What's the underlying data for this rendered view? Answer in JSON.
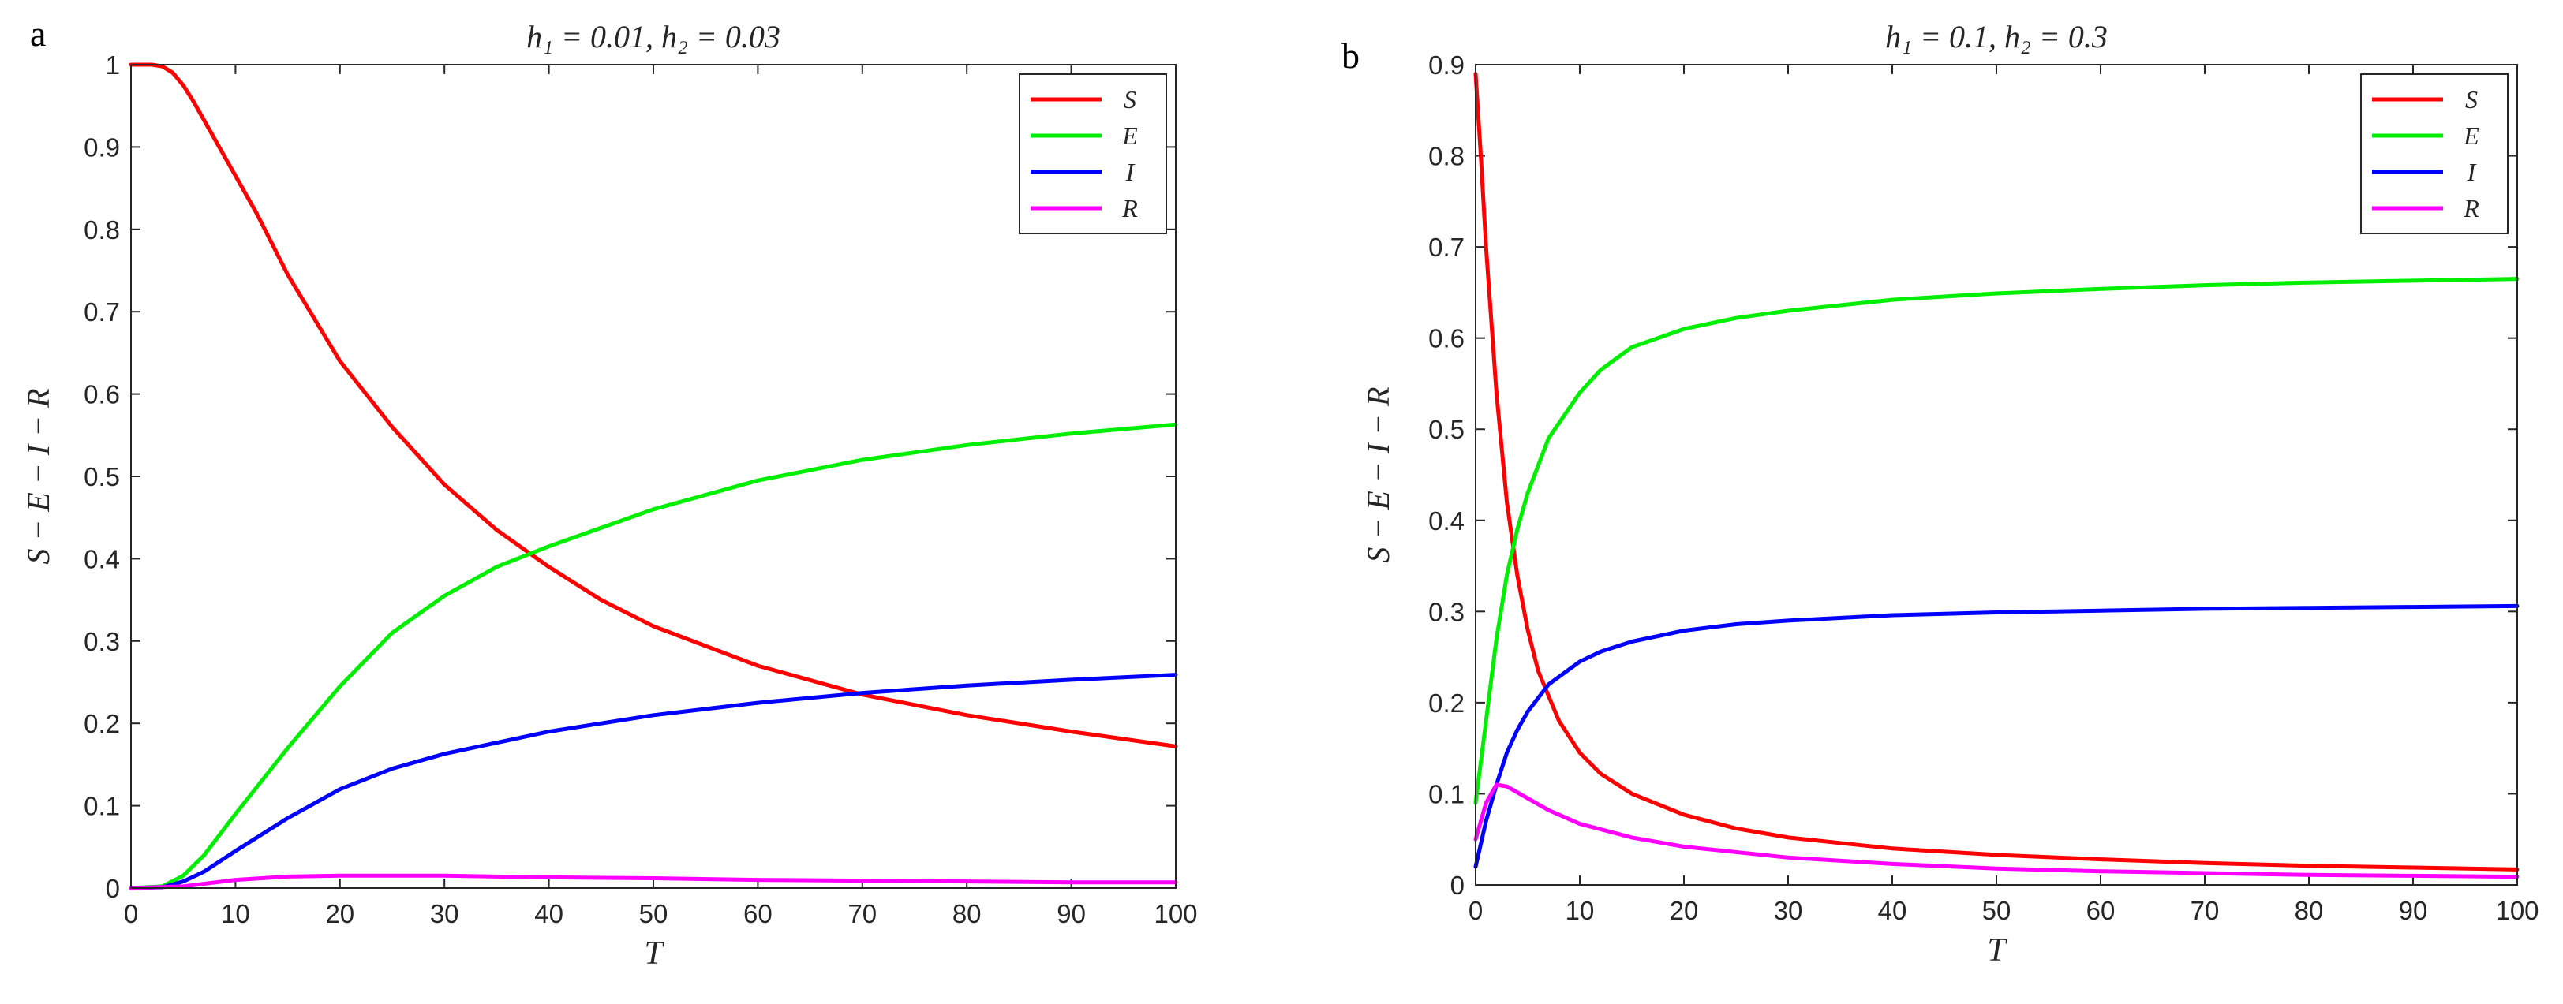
{
  "chart_data": [
    {
      "type": "line",
      "panel_label": "a",
      "title": "h₁ = 0.01, h₂ = 0.03",
      "xlabel": "T",
      "ylabel": "S − E − I − R",
      "xlim": [
        0,
        100
      ],
      "ylim": [
        0,
        1
      ],
      "xticks": [
        "0",
        "10",
        "20",
        "30",
        "40",
        "50",
        "60",
        "70",
        "80",
        "90",
        "100"
      ],
      "yticks": [
        "0",
        "0.1",
        "0.2",
        "0.3",
        "0.4",
        "0.5",
        "0.6",
        "0.7",
        "0.8",
        "0.9",
        "1"
      ],
      "legend_position": "top-right",
      "series": [
        {
          "name": "S",
          "color": "#ff0000",
          "x": [
            0,
            2,
            3,
            4,
            5,
            6,
            8,
            10,
            12,
            15,
            20,
            25,
            30,
            35,
            40,
            45,
            50,
            60,
            70,
            80,
            90,
            100
          ],
          "y": [
            1.0,
            1.0,
            0.998,
            0.99,
            0.975,
            0.955,
            0.91,
            0.865,
            0.82,
            0.745,
            0.64,
            0.56,
            0.49,
            0.435,
            0.39,
            0.35,
            0.318,
            0.27,
            0.235,
            0.21,
            0.19,
            0.172
          ]
        },
        {
          "name": "E",
          "color": "#00ee00",
          "x": [
            0,
            3,
            5,
            7,
            10,
            15,
            20,
            25,
            30,
            35,
            40,
            50,
            60,
            70,
            80,
            90,
            100
          ],
          "y": [
            0,
            0.002,
            0.015,
            0.04,
            0.09,
            0.17,
            0.245,
            0.31,
            0.355,
            0.39,
            0.415,
            0.46,
            0.495,
            0.52,
            0.538,
            0.552,
            0.563
          ]
        },
        {
          "name": "I",
          "color": "#0000ff",
          "x": [
            0,
            3,
            5,
            7,
            10,
            15,
            20,
            25,
            30,
            40,
            50,
            60,
            70,
            80,
            90,
            100
          ],
          "y": [
            0,
            0.001,
            0.008,
            0.02,
            0.045,
            0.085,
            0.12,
            0.145,
            0.163,
            0.19,
            0.21,
            0.225,
            0.237,
            0.246,
            0.253,
            0.259
          ]
        },
        {
          "name": "R",
          "color": "#ff00ff",
          "x": [
            0,
            5,
            10,
            15,
            20,
            30,
            40,
            50,
            60,
            70,
            80,
            90,
            100
          ],
          "y": [
            0,
            0.002,
            0.01,
            0.014,
            0.015,
            0.015,
            0.013,
            0.012,
            0.01,
            0.009,
            0.008,
            0.007,
            0.007
          ]
        }
      ]
    },
    {
      "type": "line",
      "panel_label": "b",
      "title": "h₁ = 0.1, h₂ = 0.3",
      "xlabel": "T",
      "ylabel": "S − E − I − R",
      "xlim": [
        0,
        100
      ],
      "ylim": [
        0,
        0.9
      ],
      "xticks": [
        "0",
        "10",
        "20",
        "30",
        "40",
        "50",
        "60",
        "70",
        "80",
        "90",
        "100"
      ],
      "yticks": [
        "0",
        "0.1",
        "0.2",
        "0.3",
        "0.4",
        "0.5",
        "0.6",
        "0.7",
        "0.8",
        "0.9"
      ],
      "legend_position": "top-right",
      "series": [
        {
          "name": "S",
          "color": "#ff0000",
          "x": [
            0,
            0.5,
            1,
            2,
            3,
            4,
            5,
            6,
            8,
            10,
            12,
            15,
            20,
            25,
            30,
            40,
            50,
            60,
            70,
            80,
            90,
            100
          ],
          "y": [
            0.89,
            0.8,
            0.7,
            0.54,
            0.42,
            0.34,
            0.28,
            0.235,
            0.18,
            0.145,
            0.122,
            0.1,
            0.077,
            0.062,
            0.052,
            0.04,
            0.033,
            0.028,
            0.024,
            0.021,
            0.019,
            0.017
          ]
        },
        {
          "name": "E",
          "color": "#00ee00",
          "x": [
            0,
            1,
            2,
            3,
            4,
            5,
            7,
            10,
            12,
            15,
            20,
            25,
            30,
            40,
            50,
            60,
            70,
            80,
            90,
            100
          ],
          "y": [
            0.09,
            0.18,
            0.27,
            0.34,
            0.39,
            0.43,
            0.49,
            0.54,
            0.565,
            0.59,
            0.61,
            0.622,
            0.63,
            0.642,
            0.649,
            0.654,
            0.658,
            0.661,
            0.663,
            0.665
          ]
        },
        {
          "name": "I",
          "color": "#0000ff",
          "x": [
            0,
            0.5,
            1,
            2,
            3,
            4,
            5,
            7,
            10,
            12,
            15,
            20,
            25,
            30,
            40,
            50,
            60,
            70,
            80,
            90,
            100
          ],
          "y": [
            0.02,
            0.045,
            0.07,
            0.11,
            0.145,
            0.17,
            0.19,
            0.22,
            0.245,
            0.256,
            0.267,
            0.279,
            0.286,
            0.29,
            0.296,
            0.299,
            0.301,
            0.303,
            0.304,
            0.305,
            0.306
          ]
        },
        {
          "name": "R",
          "color": "#ff00ff",
          "x": [
            0,
            1,
            2,
            3,
            5,
            7,
            10,
            15,
            20,
            30,
            40,
            50,
            60,
            70,
            80,
            90,
            100
          ],
          "y": [
            0.05,
            0.09,
            0.11,
            0.108,
            0.095,
            0.082,
            0.067,
            0.052,
            0.042,
            0.03,
            0.023,
            0.018,
            0.015,
            0.013,
            0.011,
            0.01,
            0.009
          ]
        }
      ]
    }
  ]
}
